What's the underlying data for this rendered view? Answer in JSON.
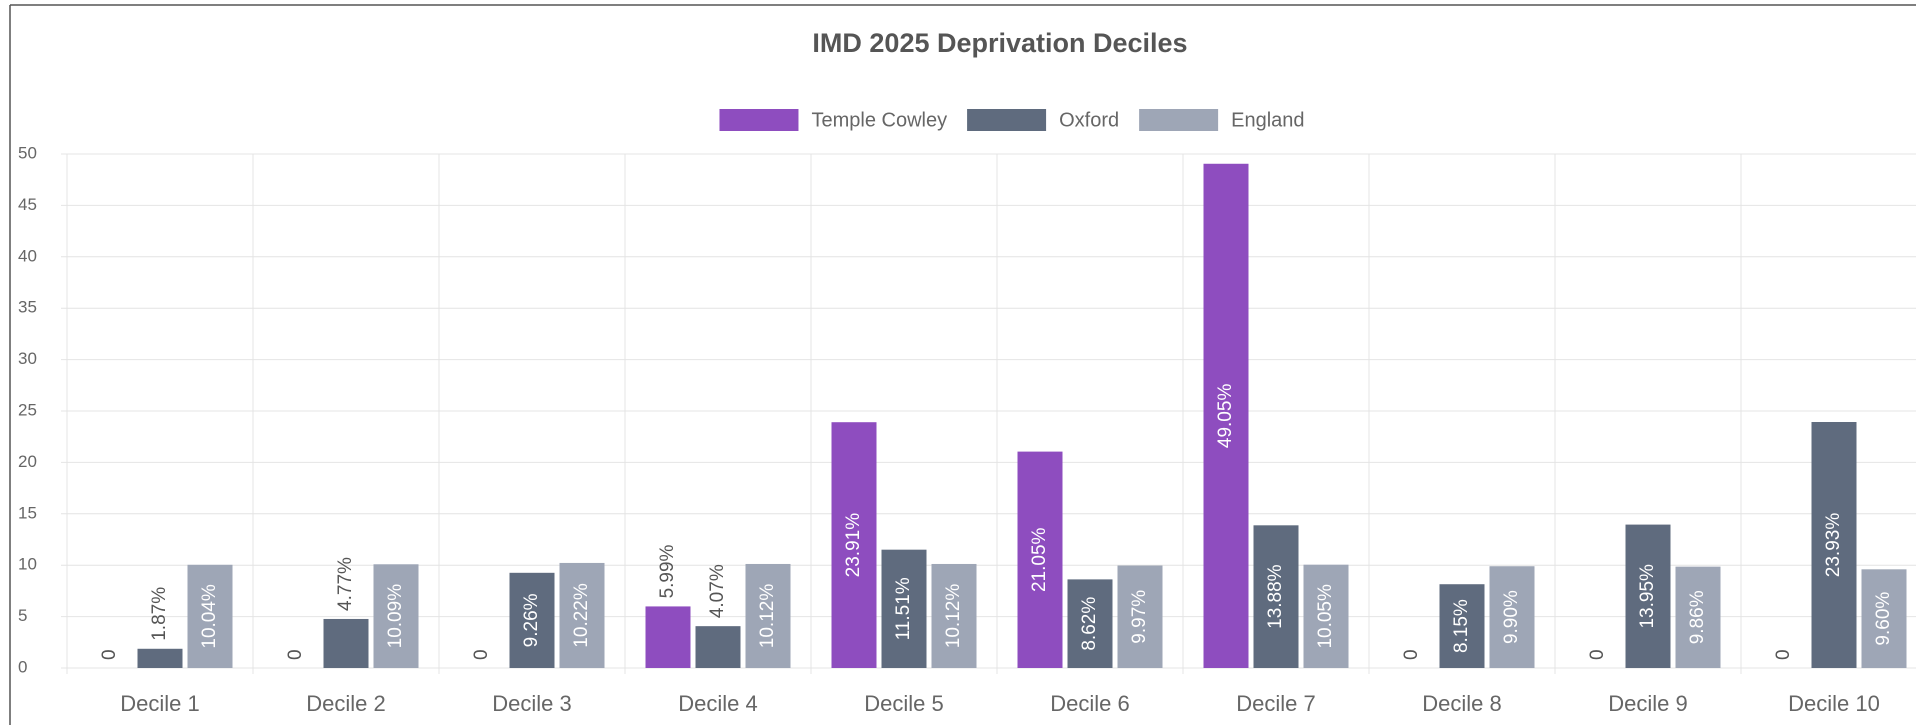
{
  "chart_data": {
    "type": "bar",
    "title": "IMD 2025 Deprivation Deciles",
    "categories": [
      "Decile 1",
      "Decile 2",
      "Decile 3",
      "Decile 4",
      "Decile 5",
      "Decile 6",
      "Decile 7",
      "Decile 8",
      "Decile 9",
      "Decile 10"
    ],
    "series": [
      {
        "name": "Temple Cowley",
        "color": "#8e4dbf",
        "values": [
          0,
          0,
          0,
          5.99,
          23.91,
          21.05,
          49.05,
          0,
          0,
          0
        ],
        "value_labels": [
          "0",
          "0",
          "0",
          "5.99%",
          "23.91%",
          "21.05%",
          "49.05%",
          "0",
          "0",
          "0"
        ]
      },
      {
        "name": "Oxford",
        "color": "#5f6b7e",
        "values": [
          1.87,
          4.77,
          9.26,
          4.07,
          11.51,
          8.62,
          13.88,
          8.15,
          13.95,
          23.93
        ],
        "value_labels": [
          "1.87%",
          "4.77%",
          "9.26%",
          "4.07%",
          "11.51%",
          "8.62%",
          "13.88%",
          "8.15%",
          "13.95%",
          "23.93%"
        ]
      },
      {
        "name": "England",
        "color": "#9ea6b6",
        "values": [
          10.04,
          10.09,
          10.22,
          10.12,
          10.12,
          9.97,
          10.05,
          9.9,
          9.86,
          9.6
        ],
        "value_labels": [
          "10.04%",
          "10.09%",
          "10.22%",
          "10.12%",
          "10.12%",
          "9.97%",
          "10.05%",
          "9.90%",
          "9.86%",
          "9.60%"
        ]
      }
    ],
    "ylim": [
      0,
      50
    ],
    "yticks": [
      0,
      5,
      10,
      15,
      20,
      25,
      30,
      35,
      40,
      45,
      50
    ],
    "grid": true,
    "legend": "top"
  }
}
